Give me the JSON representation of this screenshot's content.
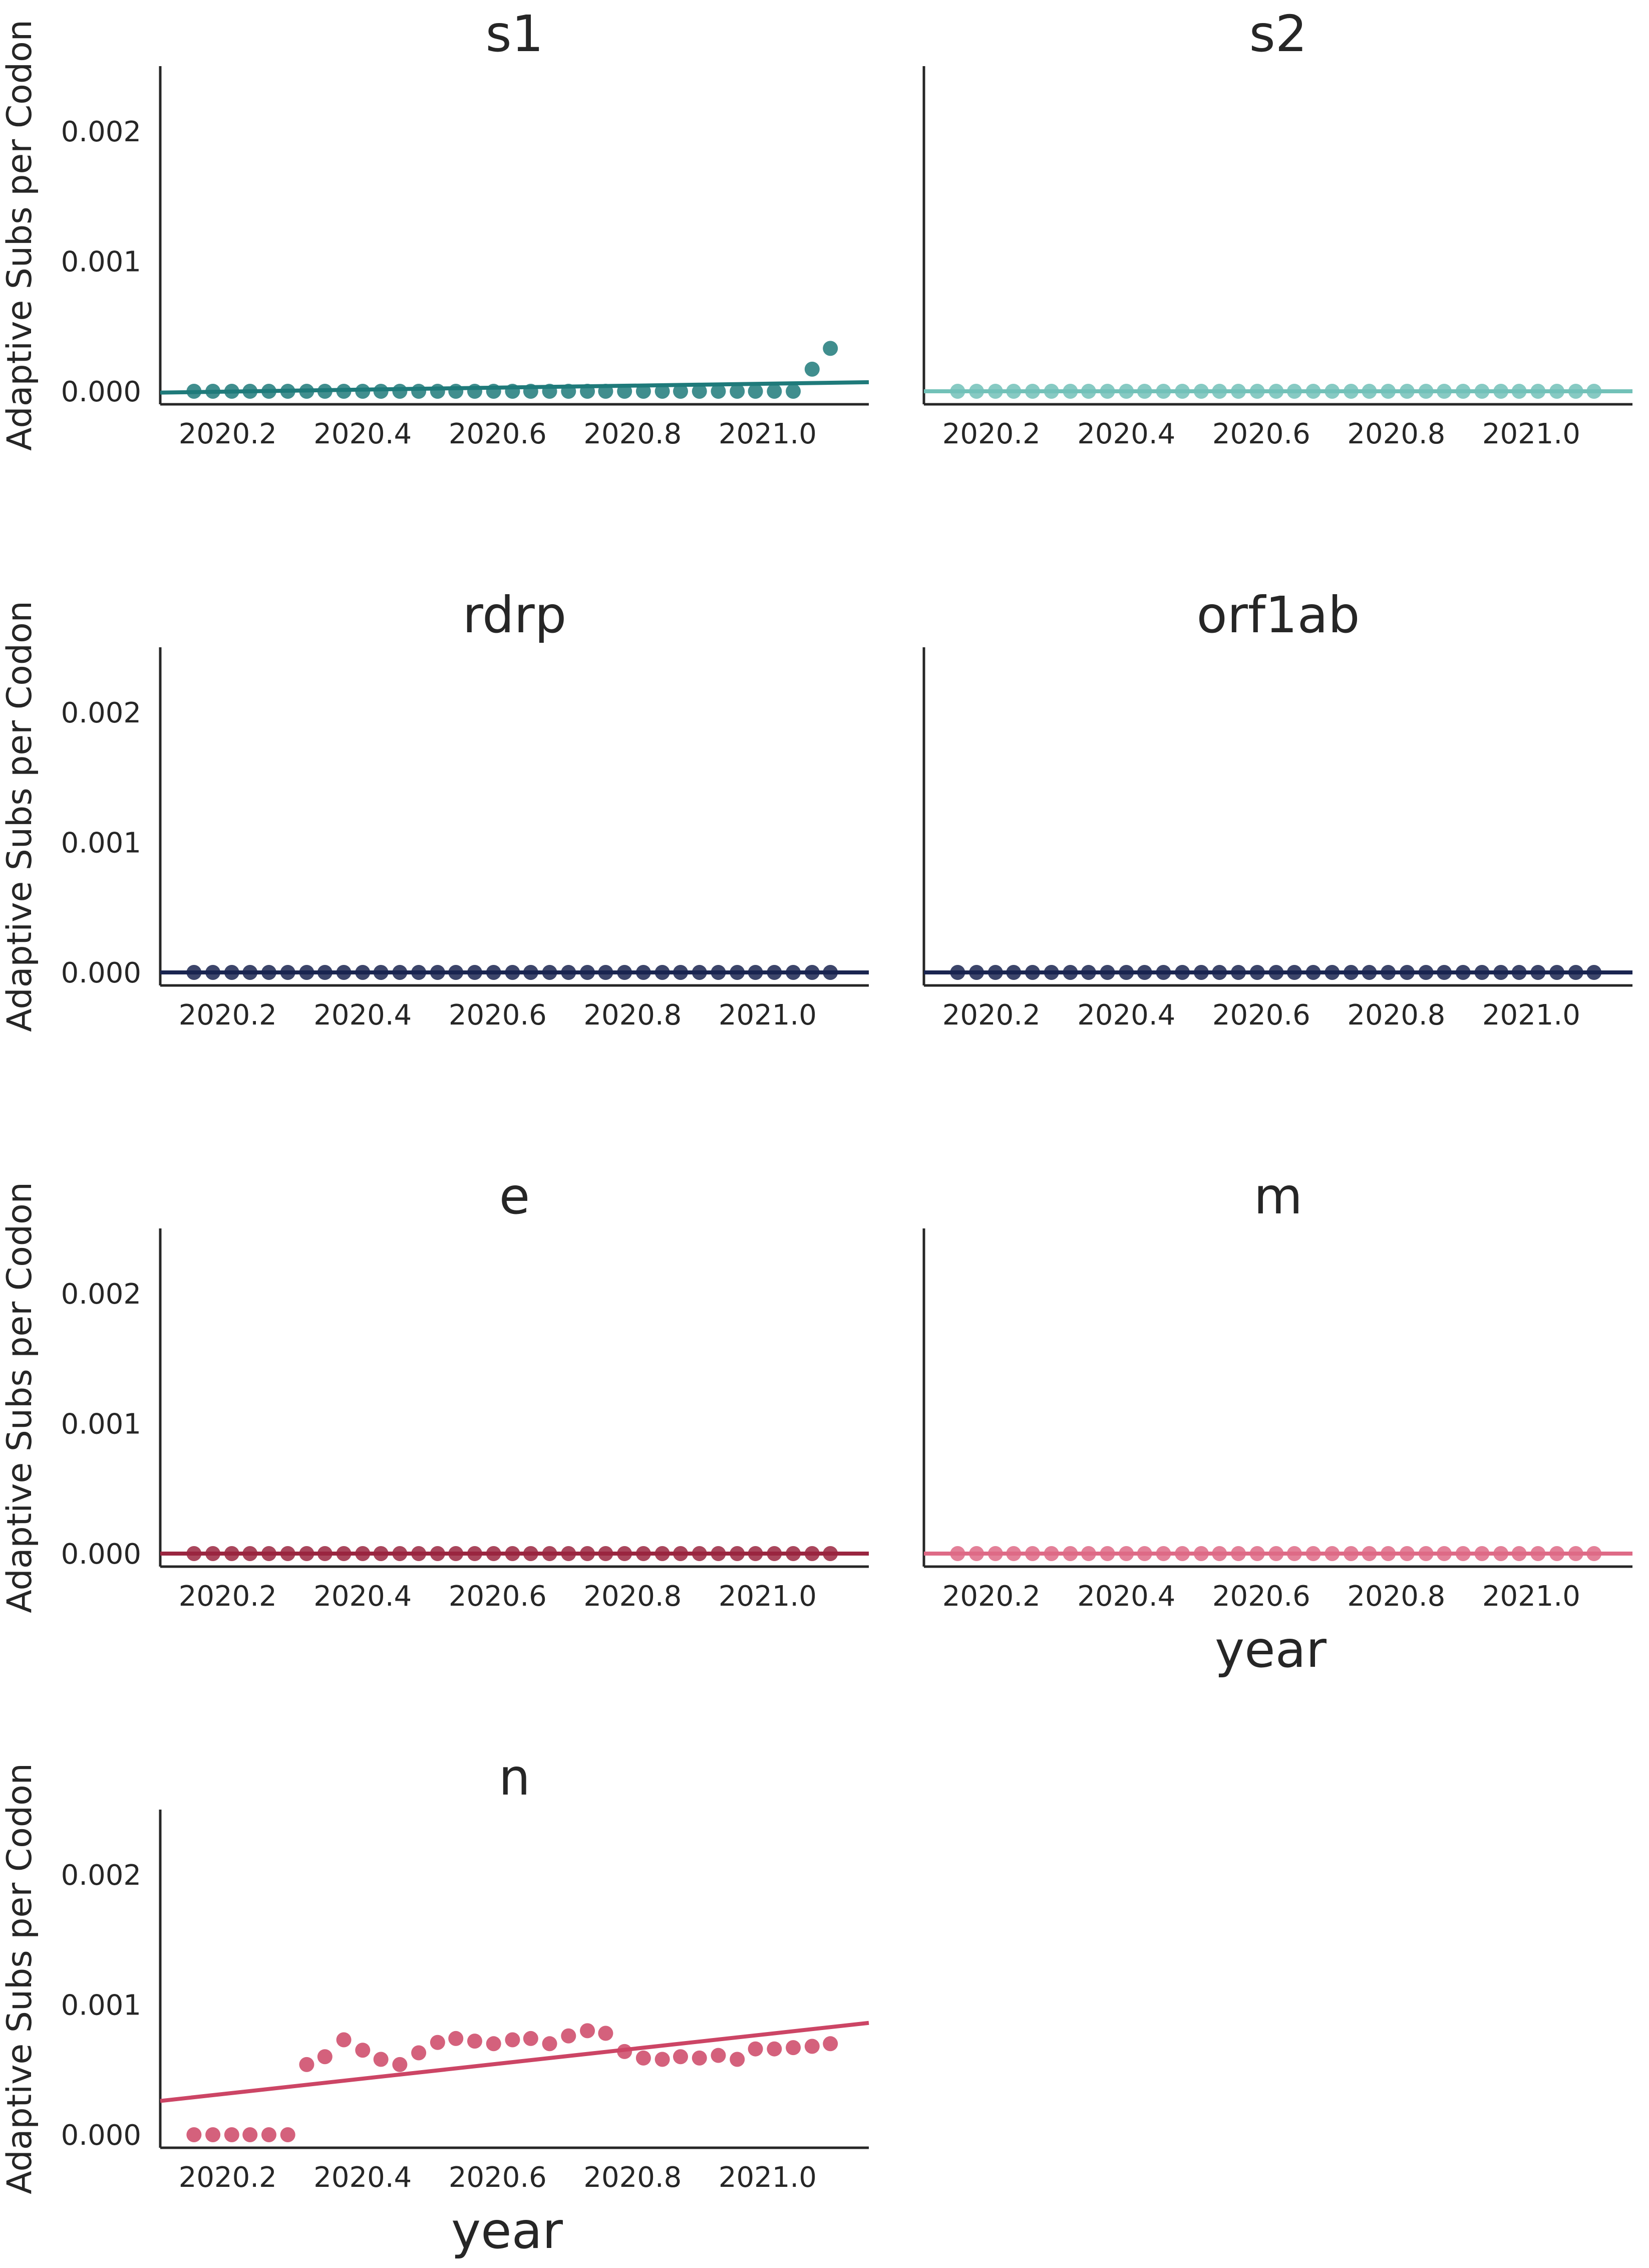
{
  "figure": {
    "ylabel": "Adaptive Subs per Codon",
    "xlabel": "year"
  },
  "chart_data": [
    {
      "type": "scatter",
      "title": "s1",
      "color": "#1f7a7a",
      "xlim": [
        2020.1,
        2021.15
      ],
      "ylim": [
        -0.0001,
        0.0025
      ],
      "xticks": [
        "2020.2",
        "2020.4",
        "2020.6",
        "2020.8",
        "2021.0"
      ],
      "yticks": [
        "0.000",
        "0.001",
        "0.002"
      ],
      "show_xlabel": false,
      "x": [
        2020.15,
        2020.178,
        2020.206,
        2020.233,
        2020.261,
        2020.289,
        2020.317,
        2020.344,
        2020.372,
        2020.4,
        2020.427,
        2020.455,
        2020.483,
        2020.511,
        2020.538,
        2020.566,
        2020.594,
        2020.622,
        2020.649,
        2020.677,
        2020.705,
        2020.733,
        2020.76,
        2020.788,
        2020.816,
        2020.844,
        2020.871,
        2020.899,
        2020.927,
        2020.955,
        2020.982,
        2021.01,
        2021.038,
        2021.066,
        2021.093
      ],
      "y": [
        0,
        0,
        0,
        0,
        0,
        0,
        0,
        0,
        0,
        0,
        0,
        0,
        0,
        0,
        0,
        0,
        0,
        0,
        0,
        0,
        0,
        0,
        0,
        0,
        0,
        0,
        0,
        0,
        0,
        0,
        0,
        0,
        0,
        0.00017,
        0.00033
      ],
      "fit": [
        [
          2020.1,
          -1e-05
        ],
        [
          2021.15,
          7e-05
        ]
      ]
    },
    {
      "type": "scatter",
      "title": "s2",
      "color": "#72c1b8",
      "xlim": [
        2020.1,
        2021.15
      ],
      "ylim": [
        -0.0001,
        0.0025
      ],
      "xticks": [
        "2020.2",
        "2020.4",
        "2020.6",
        "2020.8",
        "2021.0"
      ],
      "yticks": [],
      "show_xlabel": false,
      "x": [
        2020.15,
        2020.178,
        2020.206,
        2020.233,
        2020.261,
        2020.289,
        2020.317,
        2020.344,
        2020.372,
        2020.4,
        2020.427,
        2020.455,
        2020.483,
        2020.511,
        2020.538,
        2020.566,
        2020.594,
        2020.622,
        2020.649,
        2020.677,
        2020.705,
        2020.733,
        2020.76,
        2020.788,
        2020.816,
        2020.844,
        2020.871,
        2020.899,
        2020.927,
        2020.955,
        2020.982,
        2021.01,
        2021.038,
        2021.066,
        2021.093
      ],
      "y": [
        0,
        0,
        0,
        0,
        0,
        0,
        0,
        0,
        0,
        0,
        0,
        0,
        0,
        0,
        0,
        0,
        0,
        0,
        0,
        0,
        0,
        0,
        0,
        0,
        0,
        0,
        0,
        0,
        0,
        0,
        0,
        0,
        0,
        0,
        0
      ],
      "fit": [
        [
          2020.1,
          0
        ],
        [
          2021.15,
          0
        ]
      ]
    },
    {
      "type": "scatter",
      "title": "rdrp",
      "color": "#1a2550",
      "xlim": [
        2020.1,
        2021.15
      ],
      "ylim": [
        -0.0001,
        0.0025
      ],
      "xticks": [
        "2020.2",
        "2020.4",
        "2020.6",
        "2020.8",
        "2021.0"
      ],
      "yticks": [
        "0.000",
        "0.001",
        "0.002"
      ],
      "show_xlabel": false,
      "x": [
        2020.15,
        2020.178,
        2020.206,
        2020.233,
        2020.261,
        2020.289,
        2020.317,
        2020.344,
        2020.372,
        2020.4,
        2020.427,
        2020.455,
        2020.483,
        2020.511,
        2020.538,
        2020.566,
        2020.594,
        2020.622,
        2020.649,
        2020.677,
        2020.705,
        2020.733,
        2020.76,
        2020.788,
        2020.816,
        2020.844,
        2020.871,
        2020.899,
        2020.927,
        2020.955,
        2020.982,
        2021.01,
        2021.038,
        2021.066,
        2021.093
      ],
      "y": [
        0,
        0,
        0,
        0,
        0,
        0,
        0,
        0,
        0,
        0,
        0,
        0,
        0,
        0,
        0,
        0,
        0,
        0,
        0,
        0,
        0,
        0,
        0,
        0,
        0,
        0,
        0,
        0,
        0,
        0,
        0,
        0,
        0,
        0,
        0
      ],
      "fit": [
        [
          2020.1,
          0
        ],
        [
          2021.15,
          0
        ]
      ]
    },
    {
      "type": "scatter",
      "title": "orf1ab",
      "color": "#1a2550",
      "xlim": [
        2020.1,
        2021.15
      ],
      "ylim": [
        -0.0001,
        0.0025
      ],
      "xticks": [
        "2020.2",
        "2020.4",
        "2020.6",
        "2020.8",
        "2021.0"
      ],
      "yticks": [],
      "show_xlabel": false,
      "x": [
        2020.15,
        2020.178,
        2020.206,
        2020.233,
        2020.261,
        2020.289,
        2020.317,
        2020.344,
        2020.372,
        2020.4,
        2020.427,
        2020.455,
        2020.483,
        2020.511,
        2020.538,
        2020.566,
        2020.594,
        2020.622,
        2020.649,
        2020.677,
        2020.705,
        2020.733,
        2020.76,
        2020.788,
        2020.816,
        2020.844,
        2020.871,
        2020.899,
        2020.927,
        2020.955,
        2020.982,
        2021.01,
        2021.038,
        2021.066,
        2021.093
      ],
      "y": [
        0,
        0,
        0,
        0,
        0,
        0,
        0,
        0,
        0,
        0,
        0,
        0,
        0,
        0,
        0,
        0,
        0,
        0,
        0,
        0,
        0,
        0,
        0,
        0,
        0,
        0,
        0,
        0,
        0,
        0,
        0,
        0,
        0,
        0,
        0
      ],
      "fit": [
        [
          2020.1,
          0
        ],
        [
          2021.15,
          0
        ]
      ]
    },
    {
      "type": "scatter",
      "title": "e",
      "color": "#9a2640",
      "xlim": [
        2020.1,
        2021.15
      ],
      "ylim": [
        -0.0001,
        0.0025
      ],
      "xticks": [
        "2020.2",
        "2020.4",
        "2020.6",
        "2020.8",
        "2021.0"
      ],
      "yticks": [
        "0.000",
        "0.001",
        "0.002"
      ],
      "show_xlabel": false,
      "x": [
        2020.15,
        2020.178,
        2020.206,
        2020.233,
        2020.261,
        2020.289,
        2020.317,
        2020.344,
        2020.372,
        2020.4,
        2020.427,
        2020.455,
        2020.483,
        2020.511,
        2020.538,
        2020.566,
        2020.594,
        2020.622,
        2020.649,
        2020.677,
        2020.705,
        2020.733,
        2020.76,
        2020.788,
        2020.816,
        2020.844,
        2020.871,
        2020.899,
        2020.927,
        2020.955,
        2020.982,
        2021.01,
        2021.038,
        2021.066,
        2021.093
      ],
      "y": [
        0,
        0,
        0,
        0,
        0,
        0,
        0,
        0,
        0,
        0,
        0,
        0,
        0,
        0,
        0,
        0,
        0,
        0,
        0,
        0,
        0,
        0,
        0,
        0,
        0,
        0,
        0,
        0,
        0,
        0,
        0,
        0,
        0,
        0,
        0
      ],
      "fit": [
        [
          2020.1,
          0
        ],
        [
          2021.15,
          0
        ]
      ]
    },
    {
      "type": "scatter",
      "title": "m",
      "color": "#de6a86",
      "xlim": [
        2020.1,
        2021.15
      ],
      "ylim": [
        -0.0001,
        0.0025
      ],
      "xticks": [
        "2020.2",
        "2020.4",
        "2020.6",
        "2020.8",
        "2021.0"
      ],
      "yticks": [],
      "show_xlabel": true,
      "x": [
        2020.15,
        2020.178,
        2020.206,
        2020.233,
        2020.261,
        2020.289,
        2020.317,
        2020.344,
        2020.372,
        2020.4,
        2020.427,
        2020.455,
        2020.483,
        2020.511,
        2020.538,
        2020.566,
        2020.594,
        2020.622,
        2020.649,
        2020.677,
        2020.705,
        2020.733,
        2020.76,
        2020.788,
        2020.816,
        2020.844,
        2020.871,
        2020.899,
        2020.927,
        2020.955,
        2020.982,
        2021.01,
        2021.038,
        2021.066,
        2021.093
      ],
      "y": [
        0,
        0,
        0,
        0,
        0,
        0,
        0,
        0,
        0,
        0,
        0,
        0,
        0,
        0,
        0,
        0,
        0,
        0,
        0,
        0,
        0,
        0,
        0,
        0,
        0,
        0,
        0,
        0,
        0,
        0,
        0,
        0,
        0,
        0,
        0
      ],
      "fit": [
        [
          2020.1,
          0
        ],
        [
          2021.15,
          0
        ]
      ]
    },
    {
      "type": "scatter",
      "title": "n",
      "color": "#cc4565",
      "xlim": [
        2020.1,
        2021.15
      ],
      "ylim": [
        -0.0001,
        0.0025
      ],
      "xticks": [
        "2020.2",
        "2020.4",
        "2020.6",
        "2020.8",
        "2021.0"
      ],
      "yticks": [
        "0.000",
        "0.001",
        "0.002"
      ],
      "show_xlabel": true,
      "x": [
        2020.15,
        2020.178,
        2020.206,
        2020.233,
        2020.261,
        2020.289,
        2020.317,
        2020.344,
        2020.372,
        2020.4,
        2020.427,
        2020.455,
        2020.483,
        2020.511,
        2020.538,
        2020.566,
        2020.594,
        2020.622,
        2020.649,
        2020.677,
        2020.705,
        2020.733,
        2020.76,
        2020.788,
        2020.816,
        2020.844,
        2020.871,
        2020.899,
        2020.927,
        2020.955,
        2020.982,
        2021.01,
        2021.038,
        2021.066,
        2021.093
      ],
      "y": [
        0,
        0,
        0,
        0,
        0,
        0,
        0.00054,
        0.0006,
        0.00073,
        0.00065,
        0.00058,
        0.00054,
        0.00063,
        0.00071,
        0.00074,
        0.00072,
        0.0007,
        0.00073,
        0.00074,
        0.0007,
        0.00076,
        0.0008,
        0.00078,
        0.00064,
        0.00059,
        0.00058,
        0.0006,
        0.00059,
        0.00061,
        0.00058,
        0.00066,
        0.00066,
        0.00067,
        0.00068,
        0.0007
      ],
      "fit": [
        [
          2020.1,
          0.00026
        ],
        [
          2021.15,
          0.00086
        ]
      ]
    }
  ]
}
